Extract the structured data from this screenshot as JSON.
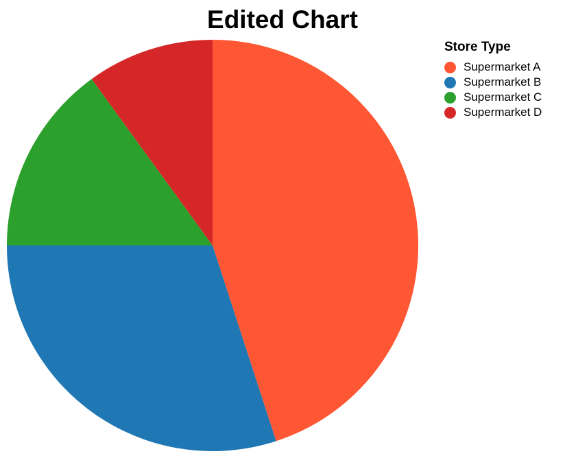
{
  "chart_data": {
    "type": "pie",
    "title": "Edited Chart",
    "legend_title": "Store Type",
    "legend_position": "top-right",
    "categories": [
      "Supermarket A",
      "Supermarket B",
      "Supermarket C",
      "Supermarket D"
    ],
    "values": [
      45,
      30,
      15,
      10
    ],
    "colors": [
      "#ff5733",
      "#1f77b4",
      "#2ca02c",
      "#d62728"
    ]
  }
}
